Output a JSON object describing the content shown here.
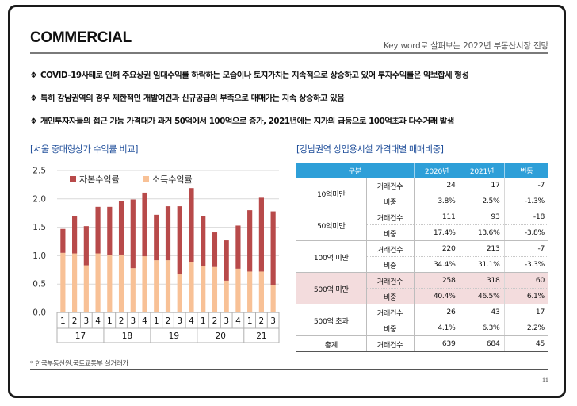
{
  "header": {
    "title": "COMMERCIAL",
    "subtitle": "Key word로 살펴보는 2022년 부동산시장 전망"
  },
  "bullets": [
    {
      "marker": "❖",
      "text": "COVID-19사태로 인해 주요상권 임대수익률 하락하는 모습이나 토지가치는 지속적으로 상승하고 있어 투자수익률은 약보합세 형성"
    },
    {
      "marker": "❖",
      "text": "특히 강남권역의 경우 제한적인 개발여건과 신규공급의 부족으로 매매가는 지속 상승하고 있음"
    },
    {
      "marker": "❖",
      "text": "개인투자자들의 접근 가능 가격대가 과거 50억에서 100억으로 증가, 2021년에는 지가의 급등으로 100억초과 다수거래 발생"
    }
  ],
  "left_section": {
    "title": "[서울 중대형상가 수익률 비교]"
  },
  "right_section": {
    "title": "[강남권역 상업용시설 가격대별 매매비중]"
  },
  "chart_data": {
    "type": "bar",
    "stacked": true,
    "title": "",
    "xlabel": "",
    "ylabel": "",
    "ylim": [
      0,
      2.5
    ],
    "yticks": [
      "0.0",
      "0.5",
      "1.0",
      "1.5",
      "2.0",
      "2.5"
    ],
    "grid": true,
    "legend_position": "top-left",
    "categories": [
      "1",
      "2",
      "3",
      "4",
      "1",
      "2",
      "3",
      "4",
      "1",
      "2",
      "3",
      "4",
      "1",
      "2",
      "3",
      "4",
      "1",
      "2",
      "3"
    ],
    "year_groups": [
      {
        "label": "17",
        "count": 4
      },
      {
        "label": "18",
        "count": 4
      },
      {
        "label": "19",
        "count": 4
      },
      {
        "label": "20",
        "count": 4
      },
      {
        "label": "21",
        "count": 3
      }
    ],
    "series": [
      {
        "name": "소득수익률",
        "color": "#f8c196",
        "values": [
          1.05,
          1.04,
          0.83,
          1.04,
          1.01,
          1.02,
          0.78,
          0.99,
          0.92,
          0.92,
          0.67,
          0.88,
          0.81,
          0.8,
          0.56,
          0.77,
          0.72,
          0.72,
          0.48
        ]
      },
      {
        "name": "자본수익률",
        "color": "#b84a4a",
        "values": [
          0.42,
          0.65,
          0.69,
          0.82,
          0.85,
          0.94,
          1.21,
          1.12,
          0.8,
          0.95,
          1.2,
          1.31,
          0.89,
          0.61,
          0.71,
          0.76,
          1.08,
          1.3,
          1.3
        ]
      }
    ]
  },
  "table": {
    "headers": [
      "구분",
      "2020년",
      "2021년",
      "변동"
    ],
    "groups": [
      {
        "label": "10억미만",
        "highlight": false,
        "rows": [
          {
            "metric": "거래건수",
            "v2020": "24",
            "v2021": "17",
            "change": "-7"
          },
          {
            "metric": "비중",
            "v2020": "3.8%",
            "v2021": "2.5%",
            "change": "-1.3%"
          }
        ]
      },
      {
        "label": "50억미만",
        "highlight": false,
        "rows": [
          {
            "metric": "거래건수",
            "v2020": "111",
            "v2021": "93",
            "change": "-18"
          },
          {
            "metric": "비중",
            "v2020": "17.4%",
            "v2021": "13.6%",
            "change": "-3.8%"
          }
        ]
      },
      {
        "label": "100억 미만",
        "highlight": false,
        "rows": [
          {
            "metric": "거래건수",
            "v2020": "220",
            "v2021": "213",
            "change": "-7"
          },
          {
            "metric": "비중",
            "v2020": "34.4%",
            "v2021": "31.1%",
            "change": "-3.3%"
          }
        ]
      },
      {
        "label": "500억 미만",
        "highlight": true,
        "rows": [
          {
            "metric": "거래건수",
            "v2020": "258",
            "v2021": "318",
            "change": "60"
          },
          {
            "metric": "비중",
            "v2020": "40.4%",
            "v2021": "46.5%",
            "change": "6.1%"
          }
        ]
      },
      {
        "label": "500억 초과",
        "highlight": false,
        "rows": [
          {
            "metric": "거래건수",
            "v2020": "26",
            "v2021": "43",
            "change": "17"
          },
          {
            "metric": "비중",
            "v2020": "4.1%",
            "v2021": "6.3%",
            "change": "2.2%"
          }
        ]
      }
    ],
    "total": {
      "label": "총계",
      "metric": "거래건수",
      "v2020": "639",
      "v2021": "684",
      "change": "45"
    }
  },
  "footer": {
    "source": "* 한국부동산원,국토교통부 실거래가",
    "page_number": "11"
  }
}
